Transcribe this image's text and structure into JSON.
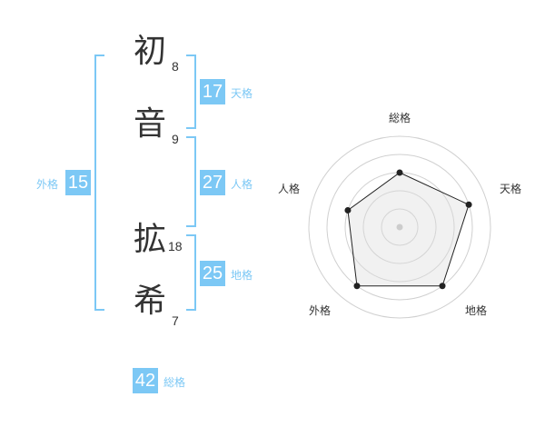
{
  "name": {
    "chars": [
      {
        "char": "初",
        "strokes": "8"
      },
      {
        "char": "音",
        "strokes": "9"
      },
      {
        "char": "拡",
        "strokes": "18"
      },
      {
        "char": "希",
        "strokes": "7"
      }
    ]
  },
  "fortunes": {
    "tenkaku": {
      "label": "天格",
      "value": "17"
    },
    "jinkaku": {
      "label": "人格",
      "value": "27"
    },
    "chikaku": {
      "label": "地格",
      "value": "25"
    },
    "gaikaku": {
      "label": "外格",
      "value": "15"
    },
    "soukaku": {
      "label": "総格",
      "value": "42"
    }
  },
  "accent_color": "#7cc8f5",
  "chart_data": {
    "type": "radar",
    "axes": [
      "総格",
      "天格",
      "地格",
      "外格",
      "人格"
    ],
    "values": [
      3,
      4,
      4,
      4,
      3
    ],
    "range": [
      0,
      5
    ],
    "rings": 5
  }
}
